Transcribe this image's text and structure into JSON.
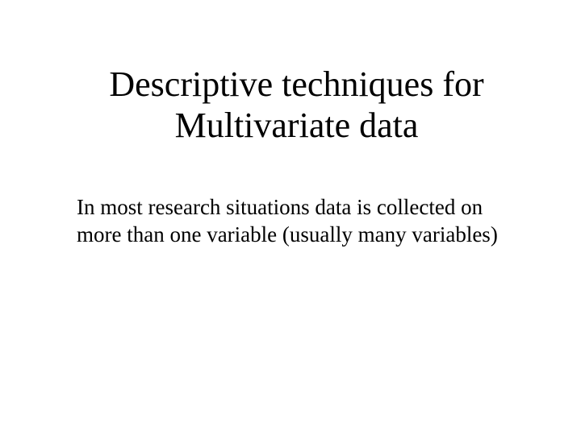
{
  "slide": {
    "title": "Descriptive techniques for Multivariate data",
    "body": "In most research situations data is collected on more than one variable (usually many variables)",
    "background_color": "#ffffff",
    "text_color": "#000000",
    "title_fontsize": 44,
    "body_fontsize": 27,
    "font_family": "Times New Roman"
  }
}
